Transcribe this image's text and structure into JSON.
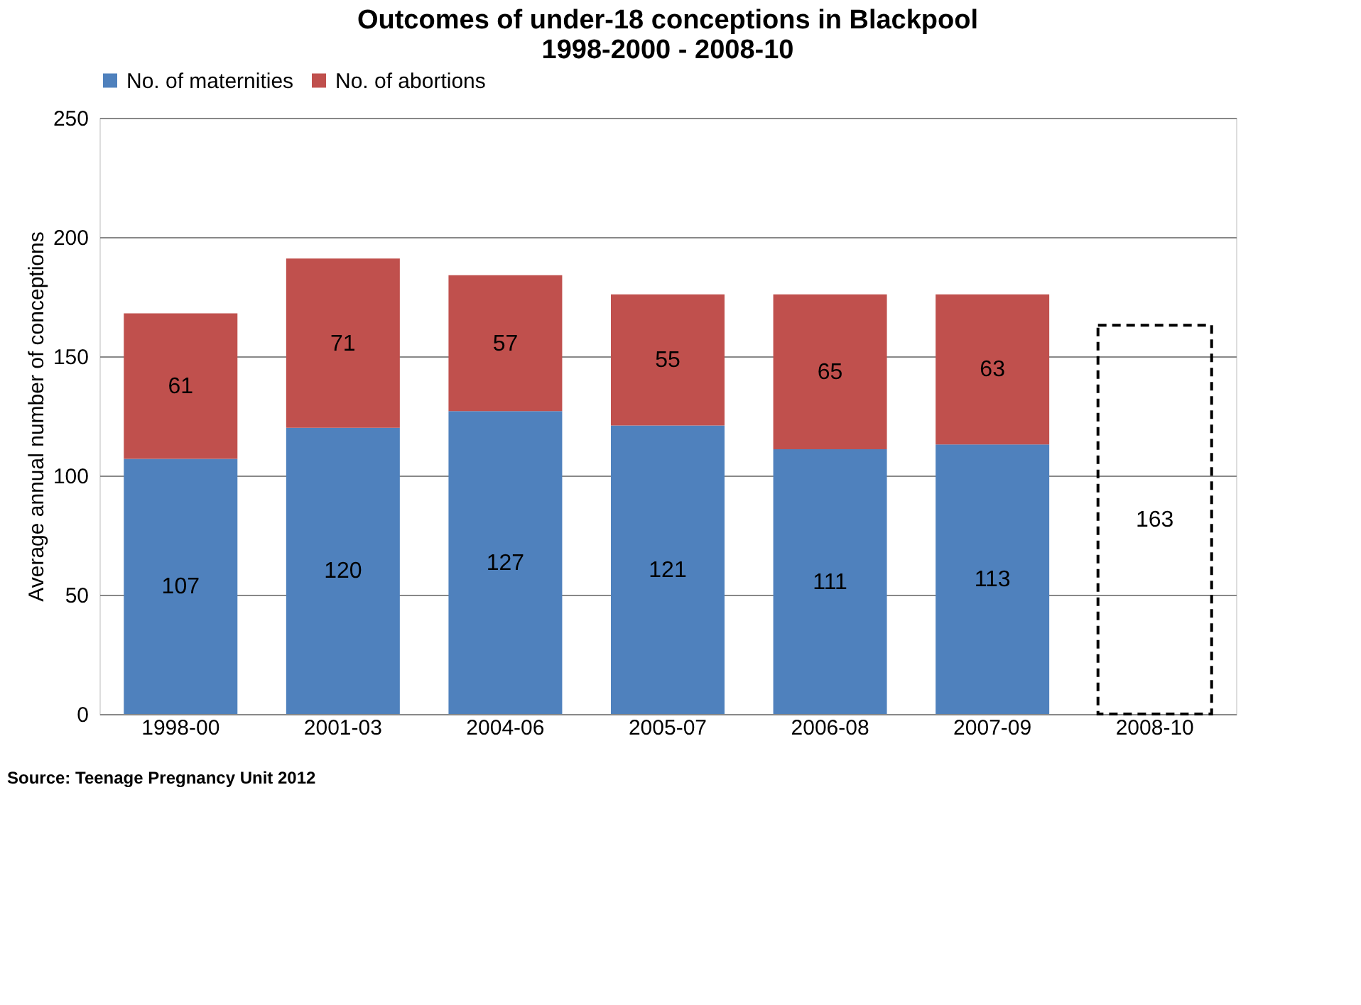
{
  "chart_data": {
    "type": "bar",
    "title": "Outcomes of under-18 conceptions in Blackpool\n1998-2000 - 2008-10",
    "ylabel": "Average annual number of conceptions",
    "categories": [
      "1998-00",
      "2001-03",
      "2004-06",
      "2005-07",
      "2006-08",
      "2007-09",
      "2008-10"
    ],
    "stacked": true,
    "series": [
      {
        "name": "No. of maternities",
        "color": "#4f81bd",
        "values": [
          107,
          120,
          127,
          121,
          111,
          113,
          null
        ]
      },
      {
        "name": "No. of abortions",
        "color": "#c0504d",
        "values": [
          61,
          71,
          57,
          55,
          65,
          63,
          null
        ]
      },
      {
        "color": "#000000",
        "line_style": "dashed",
        "values": [
          null,
          null,
          null,
          null,
          null,
          null,
          163
        ]
      }
    ],
    "data_labels": true,
    "ylim": [
      0,
      250
    ],
    "yticks": [
      0,
      50,
      100,
      150,
      200,
      250
    ],
    "grid": "y",
    "legend": "top",
    "annotations": [
      "Source: Teenage Pregnancy Unit 2012"
    ]
  }
}
